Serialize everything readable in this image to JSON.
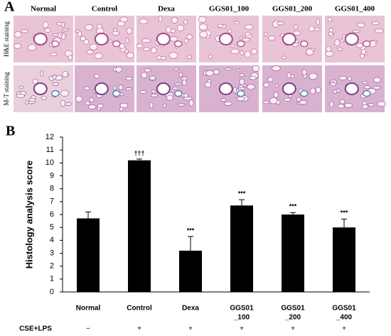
{
  "panel_a": {
    "label": "A",
    "columns": [
      "Normal",
      "Control",
      "Dexa",
      "GGS01_100",
      "GGS01_200",
      "GGS01_400"
    ],
    "rows": [
      "H&E staining",
      "M-T staining"
    ]
  },
  "chart_data": {
    "type": "bar",
    "panel_label": "B",
    "ylabel": "Histology analysis score",
    "categories": [
      [
        "Normal"
      ],
      [
        "Control"
      ],
      [
        "Dexa"
      ],
      [
        "GGS01",
        "_100"
      ],
      [
        "GGS01",
        "_200"
      ],
      [
        "GGS01",
        "_400"
      ]
    ],
    "values": [
      5.7,
      10.2,
      3.2,
      6.7,
      6.0,
      5.0
    ],
    "errors": [
      0.5,
      0.1,
      1.1,
      0.45,
      0.15,
      0.65
    ],
    "annotations": [
      null,
      "†††",
      "***",
      "***",
      "***",
      "***"
    ],
    "treatment": {
      "label": "CSE+LPS",
      "values": [
        "−",
        "+",
        "+",
        "+",
        "+",
        "+"
      ]
    },
    "color": "#000000",
    "ylim": [
      0,
      12
    ],
    "yticks": [
      0,
      1,
      2,
      3,
      4,
      5,
      6,
      7,
      8,
      9,
      10,
      11,
      12
    ]
  }
}
